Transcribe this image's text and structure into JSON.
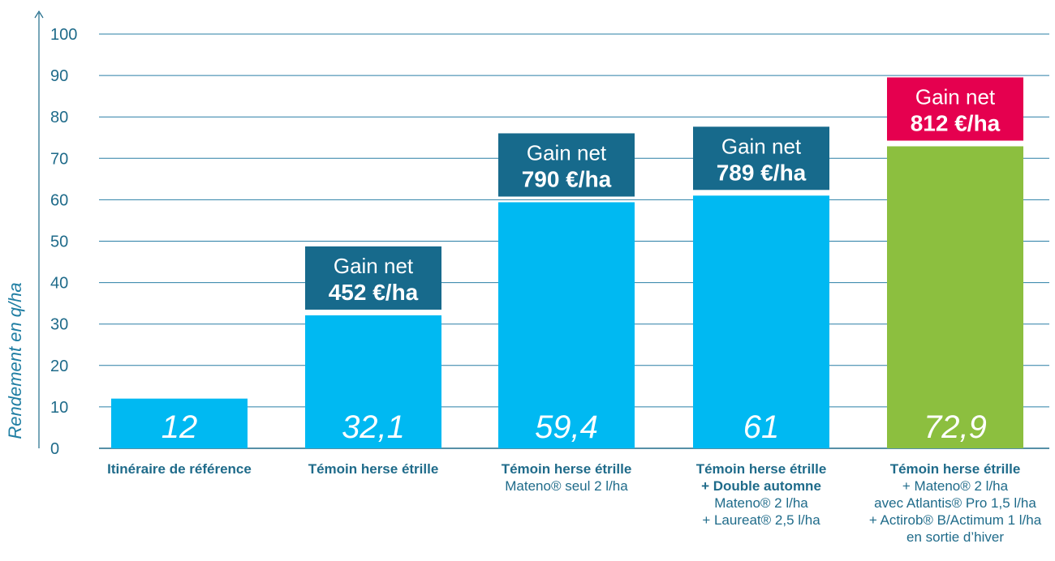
{
  "chart_data": {
    "type": "bar",
    "ylabel": "Rendement en q/ha",
    "ylim": [
      0,
      100
    ],
    "yticks": [
      0,
      10,
      20,
      30,
      40,
      50,
      60,
      70,
      80,
      90,
      100
    ],
    "grid": true,
    "categories": [
      {
        "lines": [
          {
            "text": "Itinéraire de référence",
            "bold": true
          }
        ]
      },
      {
        "lines": [
          {
            "text": "Témoin herse étrille",
            "bold": true
          }
        ]
      },
      {
        "lines": [
          {
            "text": "Témoin herse étrille",
            "bold": true
          },
          {
            "text": "Mateno® seul 2 l/ha",
            "bold": false
          }
        ]
      },
      {
        "lines": [
          {
            "text": "Témoin herse étrille",
            "bold": true
          },
          {
            "text": "+ Double automne",
            "bold": true
          },
          {
            "text": "Mateno® 2 l/ha",
            "bold": false
          },
          {
            "text": "+ Laureat® 2,5 l/ha",
            "bold": false
          }
        ]
      },
      {
        "lines": [
          {
            "text": "Témoin herse étrille",
            "bold": true
          },
          {
            "text": "+ Mateno® 2 l/ha",
            "bold": false
          },
          {
            "text": "avec Atlantis® Pro 1,5 l/ha",
            "bold": false
          },
          {
            "text": "+ Actirob® B/Actimum 1 l/ha",
            "bold": false
          },
          {
            "text": "en sortie d’hiver",
            "bold": false
          }
        ]
      }
    ],
    "values": [
      12,
      32.1,
      59.4,
      61,
      72.9
    ],
    "value_labels": [
      "12",
      "32,1",
      "59,4",
      "61",
      "72,9"
    ],
    "bar_colors": [
      "#00b9f2",
      "#00b9f2",
      "#00b9f2",
      "#00b9f2",
      "#8cbf3f"
    ],
    "annotations": [
      null,
      {
        "line1": "Gain net",
        "line2": "452 €/ha",
        "color": "#176a8c"
      },
      {
        "line1": "Gain net",
        "line2": "790 €/ha",
        "color": "#176a8c"
      },
      {
        "line1": "Gain net",
        "line2": "789 €/ha",
        "color": "#176a8c"
      },
      {
        "line1": "Gain net",
        "line2": "812 €/ha",
        "color": "#e5004f"
      }
    ]
  },
  "colors": {
    "axis": "#1f6b8a",
    "grid": "#2a7fa6",
    "category_text": "#1f6b8a"
  }
}
